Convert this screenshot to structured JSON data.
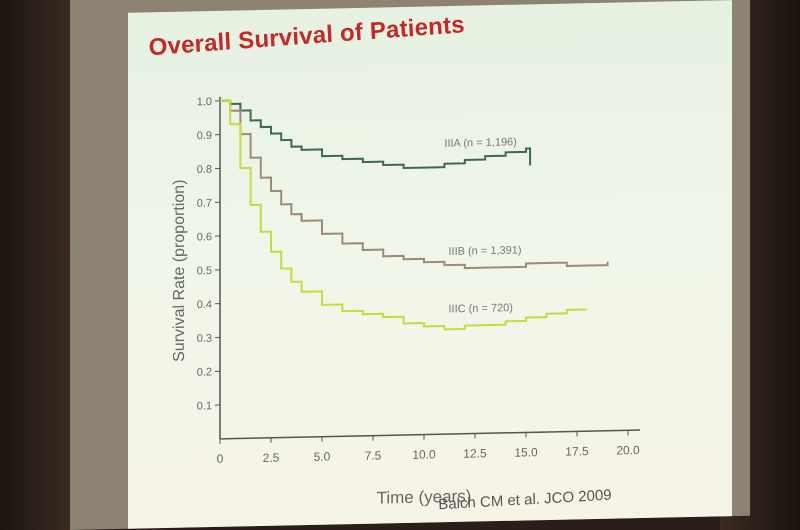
{
  "slide": {
    "title": "Overall Survival of Patients",
    "citation": "Balch CM et al. JCO 2009"
  },
  "chart_data": {
    "type": "line",
    "xlabel": "Time (years)",
    "ylabel": "Survival Rate (proportion)",
    "xlim": [
      0,
      20
    ],
    "ylim": [
      0,
      1.0
    ],
    "x_ticks": [
      "0",
      "2.5",
      "5.0",
      "7.5",
      "10.0",
      "12.5",
      "15.0",
      "17.5",
      "20.0"
    ],
    "y_ticks": [
      "0.1",
      "0.2",
      "0.3",
      "0.4",
      "0.5",
      "0.6",
      "0.7",
      "0.8",
      "0.9",
      "1.0"
    ],
    "grid": false,
    "series": [
      {
        "name": "IIIA (n = 1,196)",
        "color": "#3e6a52",
        "x": [
          0,
          0.5,
          1,
          1.5,
          2,
          2.5,
          3,
          3.5,
          4,
          5,
          6,
          7,
          8,
          9,
          10,
          11,
          12,
          13,
          14,
          15,
          15.2
        ],
        "y": [
          1.0,
          0.99,
          0.97,
          0.94,
          0.92,
          0.9,
          0.88,
          0.86,
          0.85,
          0.83,
          0.82,
          0.81,
          0.8,
          0.79,
          0.79,
          0.8,
          0.81,
          0.82,
          0.83,
          0.84,
          0.79
        ]
      },
      {
        "name": "IIIB (n = 1,391)",
        "color": "#a08a76",
        "x": [
          0,
          0.5,
          1,
          1.5,
          2,
          2.5,
          3,
          3.5,
          4,
          5,
          6,
          7,
          8,
          9,
          10,
          11,
          12,
          13,
          14,
          15,
          16,
          17,
          18,
          19
        ],
        "y": [
          1.0,
          0.97,
          0.9,
          0.83,
          0.77,
          0.73,
          0.69,
          0.66,
          0.64,
          0.6,
          0.57,
          0.55,
          0.53,
          0.52,
          0.51,
          0.5,
          0.49,
          0.49,
          0.49,
          0.5,
          0.5,
          0.49,
          0.49,
          0.5
        ]
      },
      {
        "name": "IIIC (n = 720)",
        "color": "#c5dc3c",
        "x": [
          0,
          0.5,
          1,
          1.5,
          2,
          2.5,
          3,
          3.5,
          4,
          5,
          6,
          7,
          8,
          9,
          10,
          11,
          12,
          13,
          14,
          15,
          16,
          17,
          18
        ],
        "y": [
          1.0,
          0.93,
          0.8,
          0.69,
          0.61,
          0.55,
          0.5,
          0.46,
          0.43,
          0.39,
          0.37,
          0.36,
          0.35,
          0.33,
          0.32,
          0.31,
          0.32,
          0.32,
          0.33,
          0.34,
          0.35,
          0.36,
          0.36
        ]
      }
    ]
  }
}
